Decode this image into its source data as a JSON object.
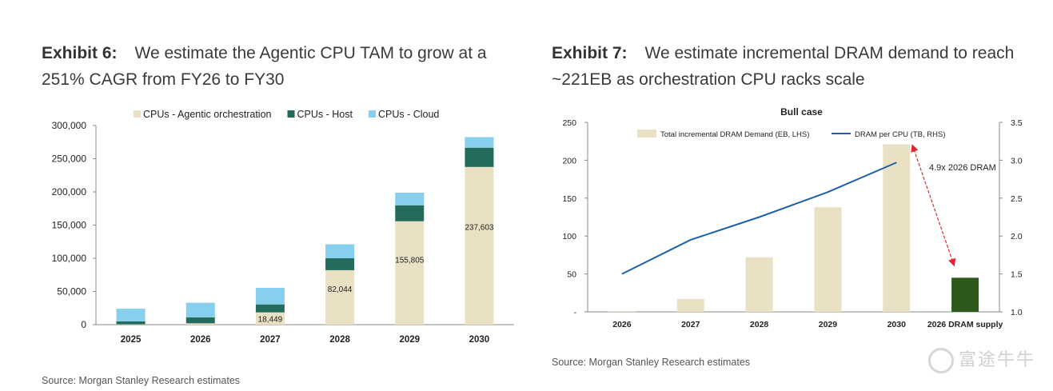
{
  "exhibit6": {
    "label": "Exhibit 6:",
    "title_line1": "We estimate the Agentic CPU TAM to grow at a",
    "title_line2": "251% CAGR from FY26 to FY30",
    "source": "Source: Morgan Stanley Research estimates"
  },
  "exhibit7": {
    "label": "Exhibit 7:",
    "title_line1": "We estimate incremental DRAM demand to reach",
    "title_line2": "~221EB as orchestration CPU racks scale",
    "source": "Source: Morgan Stanley Research estimates"
  },
  "watermark": "富途牛牛",
  "chart_data": [
    {
      "type": "bar",
      "stacked": true,
      "categories": [
        "2025",
        "2026",
        "2027",
        "2028",
        "2029",
        "2030"
      ],
      "series": [
        {
          "name": "CPUs - Agentic orchestration",
          "color": "#eae0c4",
          "values": [
            500,
            2000,
            18449,
            82044,
            155805,
            237603
          ]
        },
        {
          "name": "CPUs - Host",
          "color": "#236b5c",
          "values": [
            4500,
            9000,
            12000,
            18000,
            24000,
            29000
          ]
        },
        {
          "name": "CPUs - Cloud",
          "color": "#86d0ee",
          "values": [
            19000,
            22000,
            25000,
            21000,
            19000,
            16000
          ]
        }
      ],
      "data_labels": [
        "",
        "",
        "18,449",
        "82,044",
        "155,805",
        "237,603"
      ],
      "yticks": [
        "0",
        "50,000",
        "100,000",
        "150,000",
        "200,000",
        "250,000",
        "300,000"
      ],
      "ylim": [
        0,
        300000
      ],
      "grid": false,
      "legend": "top"
    },
    {
      "type": "bar",
      "title": "Bull case",
      "categories": [
        "2026",
        "2027",
        "2028",
        "2029",
        "2030",
        "2026 DRAM supply"
      ],
      "series": [
        {
          "name": "Total incremental DRAM Demand (EB, LHS)",
          "color": "#eae0c4",
          "values": [
            1,
            17,
            72,
            138,
            221,
            null
          ]
        },
        {
          "name": "DRAM per CPU (TB, RHS)",
          "type": "line",
          "axis": "right",
          "color": "#1f5fa8",
          "values": [
            1.5,
            1.95,
            2.25,
            2.58,
            2.97,
            null
          ]
        }
      ],
      "supply_bar": {
        "value": 45,
        "color": "#2d5a1b"
      },
      "annotation": "4.9x 2026 DRAM",
      "annotation_color": "#e0262e",
      "yticks_left": [
        "-",
        "50",
        "100",
        "150",
        "200",
        "250"
      ],
      "ylim_left": [
        0,
        250
      ],
      "yticks_right": [
        "1.0",
        "1.5",
        "2.0",
        "2.5",
        "3.0",
        "3.5"
      ],
      "ylim_right": [
        1.0,
        3.5
      ],
      "grid": false,
      "legend": "top"
    }
  ]
}
